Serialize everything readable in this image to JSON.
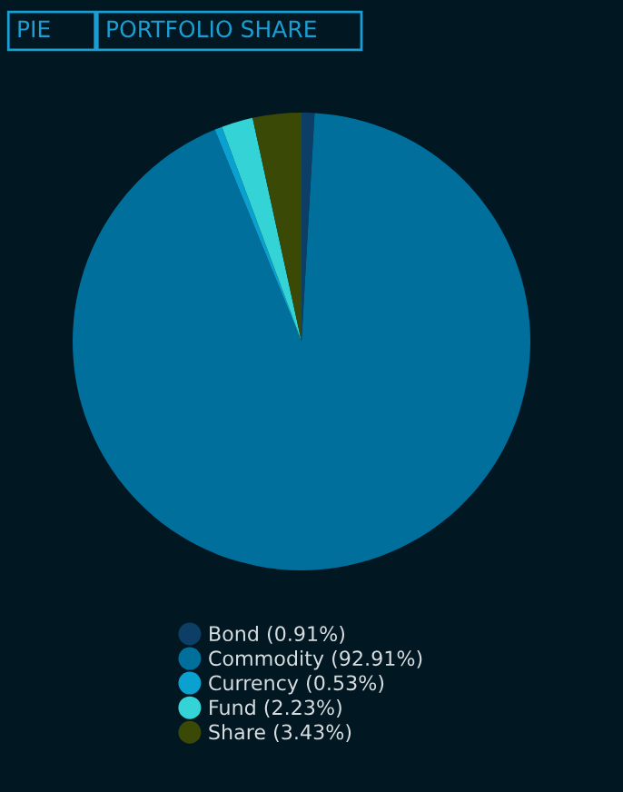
{
  "chart_data": {
    "type": "pie",
    "categories": [
      "Bond (0.91%)",
      "Commodity (92.91%)",
      "Currency (0.53%)",
      "Fund (2.23%)",
      "Share (3.43%)"
    ],
    "values": [
      0.91,
      92.91,
      0.53,
      2.23,
      3.43
    ],
    "colors": [
      "#0d3f66",
      "#006f9c",
      "#0aa0d0",
      "#33d3d6",
      "#3a4a06"
    ],
    "annotations": [
      "PIE",
      "PORTFOLIO SHARE"
    ],
    "legend": "bottom"
  }
}
